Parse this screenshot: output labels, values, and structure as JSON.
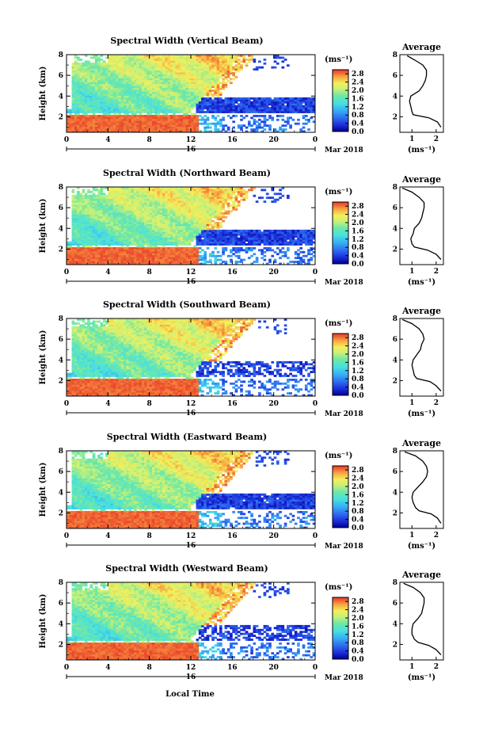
{
  "figure": {
    "xlabel": "Local Time",
    "date_label": "Mar 2018",
    "day_label": "16",
    "units_label": "(ms⁻¹)",
    "avg_xlabel": "(ms⁻¹)"
  },
  "chart_data": [
    {
      "type": "heatmap",
      "title": "Spectral Width (Vertical Beam)",
      "ylabel": "Height (km)",
      "xlabel": "",
      "x_ticks": [
        "0",
        "4",
        "8",
        "12",
        "16",
        "20",
        "0"
      ],
      "xlim_hours": [
        0,
        24
      ],
      "y_ticks": [
        "2",
        "4",
        "6",
        "8"
      ],
      "ylim_km": [
        0.5,
        8
      ],
      "colorbar": {
        "ticks": [
          "0.0",
          "0.4",
          "0.8",
          "1.2",
          "1.6",
          "2.0",
          "2.4",
          "2.8"
        ],
        "range": [
          0,
          3.0
        ]
      },
      "average_profile": {
        "title": "Average",
        "x_ticks": [
          "1",
          "2"
        ],
        "xlim": [
          0.5,
          2.3
        ],
        "y_ticks": [
          "2",
          "4",
          "6",
          "8"
        ],
        "height_km": [
          1.0,
          1.5,
          1.9,
          2.2,
          2.5,
          3.0,
          3.5,
          4.0,
          4.5,
          5.0,
          5.5,
          6.0,
          6.5,
          7.0,
          7.5,
          7.9
        ],
        "width_ms": [
          2.2,
          2.05,
          1.7,
          1.05,
          1.0,
          0.95,
          0.9,
          0.95,
          1.3,
          1.45,
          1.55,
          1.6,
          1.6,
          1.45,
          1.1,
          0.8
        ]
      }
    },
    {
      "type": "heatmap",
      "title": "Spectral Width (Northward Beam)",
      "ylabel": "Height (km)",
      "xlabel": "",
      "x_ticks": [
        "0",
        "4",
        "8",
        "12",
        "16",
        "20",
        "0"
      ],
      "xlim_hours": [
        0,
        24
      ],
      "y_ticks": [
        "2",
        "4",
        "6",
        "8"
      ],
      "ylim_km": [
        0.5,
        8
      ],
      "colorbar": {
        "ticks": [
          "0.0",
          "0.4",
          "0.8",
          "1.2",
          "1.6",
          "2.0",
          "2.4",
          "2.8"
        ],
        "range": [
          0,
          3.0
        ]
      },
      "average_profile": {
        "title": "Average",
        "x_ticks": [
          "1",
          "2"
        ],
        "xlim": [
          0.5,
          2.3
        ],
        "y_ticks": [
          "2",
          "4",
          "6",
          "8"
        ],
        "height_km": [
          1.0,
          1.5,
          1.9,
          2.2,
          2.5,
          3.0,
          3.5,
          4.0,
          4.5,
          5.0,
          5.5,
          6.0,
          6.5,
          7.0,
          7.5,
          7.9
        ],
        "width_ms": [
          2.2,
          2.0,
          1.65,
          1.1,
          1.0,
          0.95,
          1.05,
          1.1,
          1.3,
          1.4,
          1.45,
          1.5,
          1.5,
          1.3,
          1.0,
          0.6
        ]
      }
    },
    {
      "type": "heatmap",
      "title": "Spectral Width (Southward Beam)",
      "ylabel": "Height (km)",
      "xlabel": "",
      "x_ticks": [
        "0",
        "4",
        "8",
        "12",
        "16",
        "20",
        "0"
      ],
      "xlim_hours": [
        0,
        24
      ],
      "y_ticks": [
        "2",
        "4",
        "6",
        "8"
      ],
      "ylim_km": [
        0.5,
        8
      ],
      "colorbar": {
        "ticks": [
          "0.0",
          "0.4",
          "0.8",
          "1.2",
          "1.6",
          "2.0",
          "2.4",
          "2.8"
        ],
        "range": [
          0,
          3.0
        ]
      },
      "average_profile": {
        "title": "Average",
        "x_ticks": [
          "1",
          "2"
        ],
        "xlim": [
          0.5,
          2.3
        ],
        "y_ticks": [
          "2",
          "4",
          "6",
          "8"
        ],
        "height_km": [
          1.0,
          1.5,
          1.9,
          2.2,
          2.5,
          3.0,
          3.5,
          4.0,
          4.5,
          5.0,
          5.5,
          6.0,
          6.5,
          7.0,
          7.5,
          7.9
        ],
        "width_ms": [
          2.2,
          2.0,
          1.75,
          1.2,
          1.1,
          1.05,
          1.0,
          1.05,
          1.2,
          1.35,
          1.4,
          1.5,
          1.45,
          1.3,
          1.0,
          0.6
        ]
      }
    },
    {
      "type": "heatmap",
      "title": "Spectral Width (Eastward Beam)",
      "ylabel": "Height (km)",
      "xlabel": "",
      "x_ticks": [
        "0",
        "4",
        "8",
        "12",
        "16",
        "20",
        "0"
      ],
      "xlim_hours": [
        0,
        24
      ],
      "y_ticks": [
        "2",
        "4",
        "6",
        "8"
      ],
      "ylim_km": [
        0.5,
        8
      ],
      "colorbar": {
        "ticks": [
          "0.0",
          "0.4",
          "0.8",
          "1.2",
          "1.6",
          "2.0",
          "2.4",
          "2.8"
        ],
        "range": [
          0,
          3.0
        ]
      },
      "average_profile": {
        "title": "Average",
        "x_ticks": [
          "1",
          "2"
        ],
        "xlim": [
          0.5,
          2.3
        ],
        "y_ticks": [
          "2",
          "4",
          "6",
          "8"
        ],
        "height_km": [
          1.0,
          1.5,
          1.9,
          2.2,
          2.5,
          3.0,
          3.5,
          4.0,
          4.5,
          5.0,
          5.5,
          6.0,
          6.5,
          7.0,
          7.5,
          7.9
        ],
        "width_ms": [
          2.2,
          2.05,
          1.8,
          1.3,
          1.15,
          1.05,
          1.0,
          1.05,
          1.25,
          1.45,
          1.6,
          1.65,
          1.6,
          1.45,
          1.15,
          0.7
        ]
      }
    },
    {
      "type": "heatmap",
      "title": "Spectral Width (Westward Beam)",
      "ylabel": "Height (km)",
      "xlabel": "Local Time",
      "x_ticks": [
        "0",
        "4",
        "8",
        "12",
        "16",
        "20",
        "0"
      ],
      "xlim_hours": [
        0,
        24
      ],
      "y_ticks": [
        "2",
        "4",
        "6",
        "8"
      ],
      "ylim_km": [
        0.5,
        8
      ],
      "colorbar": {
        "ticks": [
          "0.0",
          "0.4",
          "0.8",
          "1.2",
          "1.6",
          "2.0",
          "2.4",
          "2.8"
        ],
        "range": [
          0,
          3.0
        ]
      },
      "average_profile": {
        "title": "Average",
        "x_ticks": [
          "1",
          "2"
        ],
        "xlim": [
          0.5,
          2.3
        ],
        "y_ticks": [
          "2",
          "4",
          "6",
          "8"
        ],
        "height_km": [
          1.0,
          1.5,
          1.9,
          2.2,
          2.5,
          3.0,
          3.5,
          4.0,
          4.5,
          5.0,
          5.5,
          6.0,
          6.5,
          7.0,
          7.5,
          7.9
        ],
        "width_ms": [
          2.2,
          2.0,
          1.7,
          1.25,
          1.1,
          1.0,
          1.0,
          1.05,
          1.25,
          1.4,
          1.45,
          1.5,
          1.5,
          1.35,
          1.05,
          0.65
        ]
      }
    }
  ]
}
